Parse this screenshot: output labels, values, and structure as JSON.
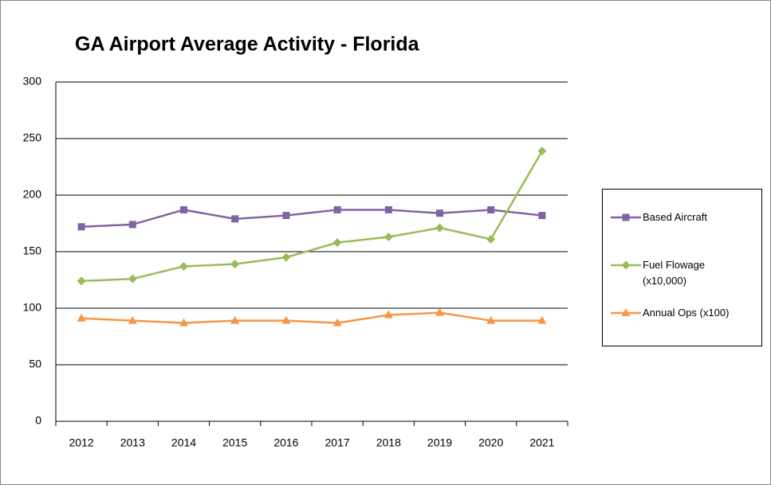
{
  "chart_data": {
    "type": "line",
    "title": "GA Airport Average Activity - Florida",
    "categories": [
      "2012",
      "2013",
      "2014",
      "2015",
      "2016",
      "2017",
      "2018",
      "2019",
      "2020",
      "2021"
    ],
    "series": [
      {
        "name": "Based Aircraft",
        "color": "#8064a2",
        "marker": "square",
        "values": [
          172,
          174,
          187,
          179,
          182,
          187,
          187,
          184,
          187,
          182
        ]
      },
      {
        "name": "Fuel Flowage (x10,000)",
        "color": "#9bbb59",
        "marker": "diamond",
        "values": [
          124,
          126,
          137,
          139,
          145,
          158,
          163,
          171,
          161,
          239
        ]
      },
      {
        "name": "Annual Ops (x100)",
        "color": "#f79646",
        "marker": "triangle",
        "values": [
          91,
          89,
          87,
          89,
          89,
          87,
          94,
          96,
          89,
          89
        ]
      }
    ],
    "ylim": [
      0,
      300
    ],
    "yticks": [
      0,
      50,
      100,
      150,
      200,
      250,
      300
    ],
    "grid": true,
    "legend": "right"
  }
}
